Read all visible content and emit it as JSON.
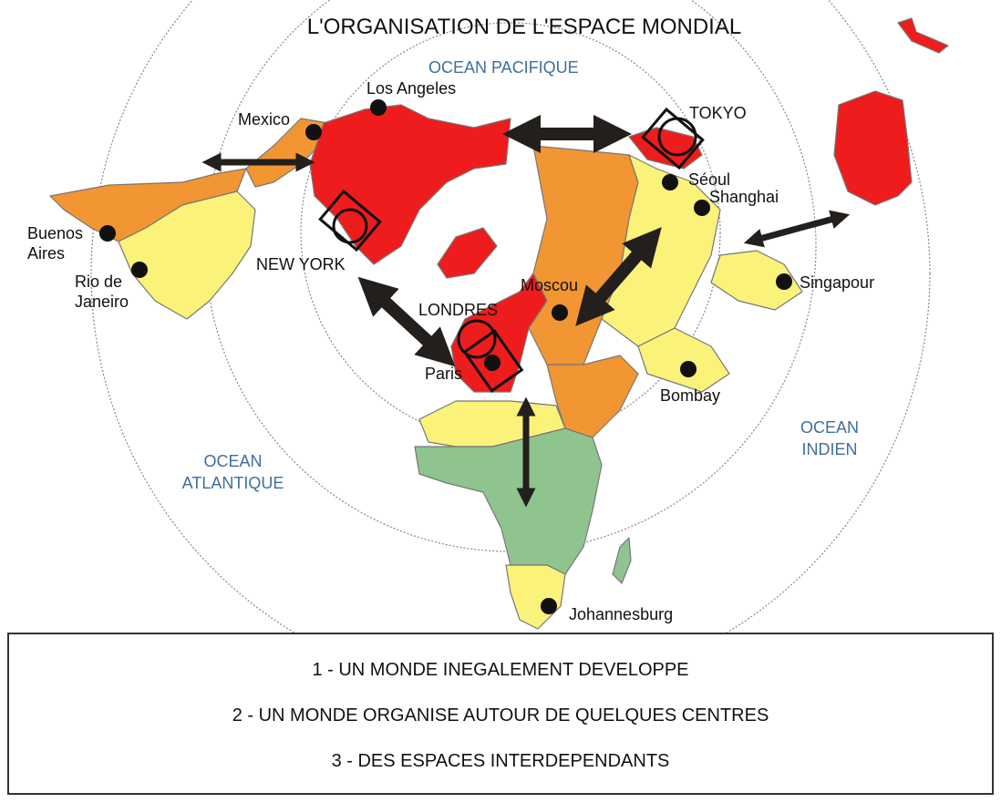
{
  "title": "L'ORGANISATION DE L'ESPACE MONDIAL",
  "oceans": {
    "pacific": "OCEAN PACIFIQUE",
    "atlantic": [
      "OCEAN",
      "ATLANTIQUE"
    ],
    "indian": [
      "OCEAN",
      "INDIEN"
    ]
  },
  "cities": {
    "los_angeles": "Los Angeles",
    "mexico": "Mexico",
    "buenos_aires": [
      "Buenos",
      "Aires"
    ],
    "rio": [
      "Rio de",
      "Janeiro"
    ],
    "new_york": "NEW YORK",
    "londres": "LONDRES",
    "paris": "Paris",
    "moscou": "Moscou",
    "tokyo": "TOKYO",
    "seoul": "Séoul",
    "shanghai": "Shanghai",
    "singapour": "Singapour",
    "bombay": "Bombay",
    "johannesburg": "Johannesburg"
  },
  "colors": {
    "red": "#ee1c1c",
    "orange": "#f29533",
    "yellow": "#fbf27a",
    "green": "#8fc48e",
    "ocean_text": "#3f6f9a"
  },
  "legend": [
    "1 - UN MONDE INEGALEMENT DEVELOPPE",
    "2 - UN MONDE ORGANISE AUTOUR DE QUELQUES CENTRES",
    "3 - DES ESPACES INTERDEPENDANTS"
  ]
}
